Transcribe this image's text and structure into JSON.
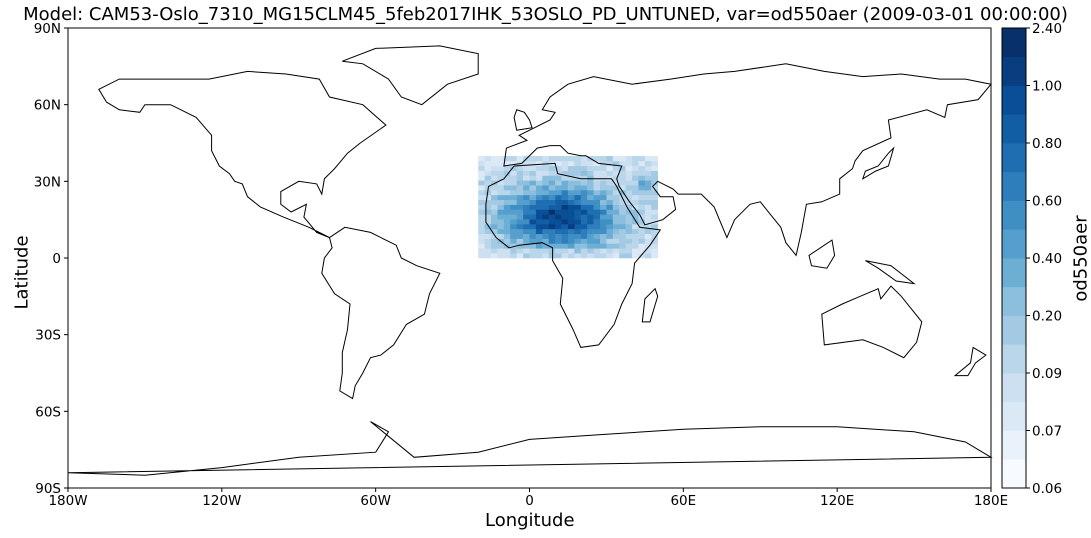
{
  "title": "Model: CAM53-Oslo_7310_MG15CLM45_5feb2017IHK_53OSLO_PD_UNTUNED, var=od550aer (2009-03-01 00:00:00)",
  "x_axis": {
    "label": "Longitude",
    "ticks": [
      {
        "value": -180,
        "label": "180W"
      },
      {
        "value": -120,
        "label": "120W"
      },
      {
        "value": -60,
        "label": "60W"
      },
      {
        "value": 0,
        "label": "0"
      },
      {
        "value": 60,
        "label": "60E"
      },
      {
        "value": 120,
        "label": "120E"
      },
      {
        "value": 180,
        "label": "180E"
      }
    ]
  },
  "y_axis": {
    "label": "Latitude",
    "ticks": [
      {
        "value": 90,
        "label": "90N"
      },
      {
        "value": 60,
        "label": "60N"
      },
      {
        "value": 30,
        "label": "30N"
      },
      {
        "value": 0,
        "label": "0"
      },
      {
        "value": -30,
        "label": "30S"
      },
      {
        "value": -60,
        "label": "60S"
      },
      {
        "value": -90,
        "label": "90S"
      }
    ]
  },
  "colorbar": {
    "label": "od550aer",
    "tick_labels": [
      "0.06",
      "0.07",
      "0.09",
      "0.20",
      "0.40",
      "0.60",
      "0.80",
      "1.00",
      "2.40"
    ],
    "colors": [
      "#f7fbff",
      "#e9f2fb",
      "#dbe9f6",
      "#cde0f1",
      "#bad6eb",
      "#a4cae3",
      "#8bbfdd",
      "#6daed5",
      "#549fcd",
      "#3f8ec4",
      "#2e7ebc",
      "#1f6eb2",
      "#125ea5",
      "#084f97",
      "#083d7f",
      "#08306b"
    ]
  },
  "chart_data": {
    "type": "heatmap",
    "title": "Model: CAM53-Oslo_7310_MG15CLM45_5feb2017IHK_53OSLO_PD_UNTUNED, var=od550aer (2009-03-01 00:00:00)",
    "xlabel": "Longitude",
    "ylabel": "Latitude",
    "xlim": [
      -180,
      180
    ],
    "ylim": [
      -90,
      90
    ],
    "colorbar_label": "od550aer",
    "data_region": {
      "lon": [
        -20,
        50
      ],
      "lat": [
        0,
        39
      ]
    },
    "high_aod_core": {
      "lon": [
        -10,
        35
      ],
      "lat": [
        5,
        30
      ],
      "approx_value": 1.0
    },
    "base_value": 0.3
  }
}
